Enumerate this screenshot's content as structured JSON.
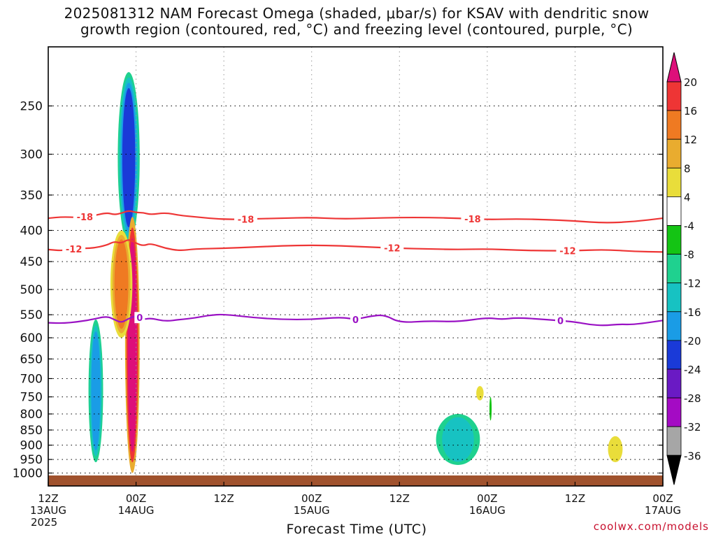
{
  "title": {
    "line1": "2025081312 NAM Forecast Omega (shaded, μbar/s) for KSAV with dendritic snow",
    "line2": "growth region (contoured, red, °C) and freezing level (contoured, purple, °C)"
  },
  "credit": "coolwx.com/models",
  "chart_data": {
    "type": "heatmap",
    "xlabel": "Forecast Time (UTC)",
    "ylabel": "",
    "x_axis": {
      "unit": "forecast hour",
      "range": [
        0,
        84
      ],
      "ticks": [
        {
          "hour": 0,
          "label": [
            "12Z",
            "13AUG",
            "2025"
          ]
        },
        {
          "hour": 12,
          "label": [
            "00Z",
            "14AUG"
          ]
        },
        {
          "hour": 24,
          "label": [
            "12Z"
          ]
        },
        {
          "hour": 36,
          "label": [
            "00Z",
            "15AUG"
          ]
        },
        {
          "hour": 48,
          "label": [
            "12Z"
          ]
        },
        {
          "hour": 60,
          "label": [
            "00Z",
            "16AUG"
          ]
        },
        {
          "hour": 72,
          "label": [
            "12Z"
          ]
        },
        {
          "hour": 84,
          "label": [
            "00Z",
            "17AUG"
          ]
        }
      ]
    },
    "y_axis": {
      "unit": "hPa",
      "scale": "log",
      "range": [
        1050,
        200
      ],
      "ticks": [
        250,
        300,
        350,
        400,
        450,
        500,
        550,
        600,
        650,
        700,
        750,
        800,
        850,
        900,
        950,
        1000
      ]
    },
    "grid": true,
    "colorbar": {
      "placement": "right",
      "labels": [
        "20",
        "16",
        "12",
        "8",
        "4",
        "-4",
        "-8",
        "-12",
        "-16",
        "-20",
        "-24",
        "-28",
        "-32",
        "-36"
      ],
      "bins": [
        {
          "from": 20,
          "to": 99,
          "color": "#dd0f7a"
        },
        {
          "from": 16,
          "to": 20,
          "color": "#ee3535"
        },
        {
          "from": 12,
          "to": 16,
          "color": "#ef7a22"
        },
        {
          "from": 8,
          "to": 12,
          "color": "#e9ac2f"
        },
        {
          "from": 4,
          "to": 8,
          "color": "#e9dd3a"
        },
        {
          "from": -4,
          "to": 4,
          "color": "#ffffff"
        },
        {
          "from": -8,
          "to": -4,
          "color": "#14c414"
        },
        {
          "from": -12,
          "to": -8,
          "color": "#1fd18f"
        },
        {
          "from": -16,
          "to": -12,
          "color": "#17c2c2"
        },
        {
          "from": -20,
          "to": -16,
          "color": "#1a9ce6"
        },
        {
          "from": -24,
          "to": -20,
          "color": "#1a3ad8"
        },
        {
          "from": -28,
          "to": -24,
          "color": "#6a1ac4"
        },
        {
          "from": -32,
          "to": -28,
          "color": "#a40bc4"
        },
        {
          "from": -36,
          "to": -32,
          "color": "#a6a6a6"
        },
        {
          "from": -99,
          "to": -36,
          "color": "#000000"
        }
      ]
    },
    "ground_color": "#a0522d",
    "shaded_regions": [
      {
        "id": "upper-upward-core",
        "hours": [
          9.5,
          12.5
        ],
        "p": [
          220,
          420
        ],
        "omega": -20,
        "levels": [
          -8,
          -12,
          -16,
          -20
        ]
      },
      {
        "id": "main-downward-column",
        "hours": [
          10.5,
          12.5
        ],
        "p": [
          380,
          1000
        ],
        "omega": 20,
        "levels": [
          8,
          16,
          20
        ]
      },
      {
        "id": "mid-level-band",
        "hours": [
          8.5,
          11.5
        ],
        "p": [
          400,
          600
        ],
        "omega": 12,
        "levels": [
          4,
          8,
          12
        ]
      },
      {
        "id": "early-upward-column",
        "hours": [
          5.5,
          7.5
        ],
        "p": [
          560,
          960
        ],
        "omega": -16,
        "levels": [
          -8,
          -12,
          -16
        ]
      },
      {
        "id": "day3-upward-patch",
        "hours": [
          53,
          59
        ],
        "p": [
          800,
          970
        ],
        "omega": -12,
        "levels": [
          -8,
          -12
        ]
      },
      {
        "id": "day3-small-positive",
        "hours": [
          58.5,
          59.5
        ],
        "p": [
          720,
          760
        ],
        "omega": 4,
        "levels": [
          4
        ]
      },
      {
        "id": "day3-small-negative",
        "hours": [
          60.3,
          60.6
        ],
        "p": [
          750,
          820
        ],
        "omega": -4,
        "levels": [
          -4
        ]
      },
      {
        "id": "day4-small-positive",
        "hours": [
          76.5,
          78.5
        ],
        "p": [
          870,
          960
        ],
        "omega": 4,
        "levels": [
          4
        ]
      }
    ],
    "series": [
      {
        "name": "-18",
        "color": "#ee3535",
        "x": [
          0,
          2,
          4,
          6,
          8,
          9,
          10,
          11,
          12,
          13,
          14,
          16,
          18,
          20,
          24,
          28,
          32,
          36,
          40,
          44,
          48,
          52,
          56,
          60,
          64,
          68,
          72,
          76,
          80,
          84
        ],
        "y": [
          382,
          380,
          381,
          379,
          374,
          377,
          375,
          371,
          374,
          374,
          377,
          374,
          378,
          380,
          384,
          383,
          382,
          381,
          383,
          382,
          381,
          381,
          382,
          384,
          383,
          384,
          386,
          389,
          387,
          382
        ],
        "labels_at": [
          5,
          27,
          58
        ]
      },
      {
        "name": "-12",
        "color": "#ee3535",
        "x": [
          0,
          2,
          4,
          6,
          8,
          9,
          10,
          11,
          12,
          13,
          14,
          16,
          18,
          20,
          24,
          28,
          32,
          36,
          40,
          44,
          48,
          52,
          56,
          60,
          64,
          68,
          72,
          76,
          80,
          84
        ],
        "y": [
          430,
          432,
          428,
          428,
          423,
          417,
          420,
          413,
          420,
          424,
          420,
          428,
          432,
          429,
          428,
          426,
          424,
          423,
          424,
          426,
          428,
          429,
          430,
          429,
          431,
          432,
          432,
          430,
          433,
          434
        ],
        "labels_at": [
          3.5,
          47,
          71
        ]
      },
      {
        "name": "0",
        "color": "#9a12c4",
        "x": [
          0,
          2,
          4,
          6,
          8,
          9,
          10,
          11,
          12,
          13,
          14,
          16,
          18,
          20,
          22,
          24,
          28,
          32,
          36,
          40,
          42,
          44,
          46,
          48,
          52,
          56,
          60,
          62,
          64,
          68,
          72,
          74,
          76,
          78,
          80,
          84
        ],
        "y": [
          567,
          568,
          565,
          560,
          553,
          560,
          567,
          558,
          552,
          560,
          557,
          564,
          560,
          557,
          551,
          549,
          556,
          560,
          560,
          555,
          560,
          553,
          550,
          567,
          563,
          565,
          556,
          560,
          556,
          560,
          565,
          571,
          573,
          570,
          571,
          562
        ],
        "labels_at": [
          12.5,
          42,
          70
        ]
      }
    ]
  }
}
